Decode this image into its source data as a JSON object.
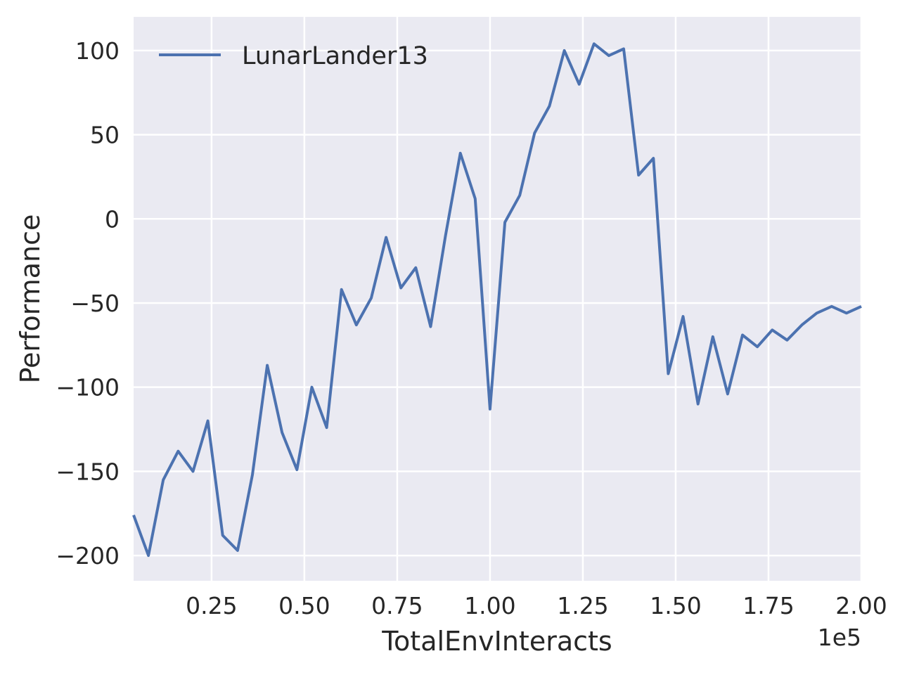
{
  "chart_data": {
    "type": "line",
    "xlabel": "TotalEnvInteracts",
    "ylabel": "Performance",
    "x_multiplier_label": "1e5",
    "xlim": [
      0.04,
      2.0
    ],
    "ylim": [
      -215,
      120
    ],
    "x_ticks": [
      0.25,
      0.5,
      0.75,
      1.0,
      1.25,
      1.5,
      1.75,
      2.0
    ],
    "x_tick_labels": [
      "0.25",
      "0.50",
      "0.75",
      "1.00",
      "1.25",
      "1.50",
      "1.75",
      "2.00"
    ],
    "y_ticks": [
      100,
      50,
      0,
      -50,
      -100,
      -150,
      -200
    ],
    "y_tick_labels": [
      "100",
      "50",
      "0",
      "−50",
      "−100",
      "−150",
      "−200"
    ],
    "grid": true,
    "legend_position": "top-left",
    "colors": {
      "background": "#eaeaf2",
      "grid": "#ffffff",
      "line": "#4c72b0",
      "text": "#262626"
    },
    "series": [
      {
        "name": "LunarLander13",
        "x": [
          0.04,
          0.08,
          0.12,
          0.16,
          0.2,
          0.24,
          0.28,
          0.32,
          0.36,
          0.4,
          0.44,
          0.48,
          0.52,
          0.56,
          0.6,
          0.64,
          0.68,
          0.72,
          0.76,
          0.8,
          0.84,
          0.88,
          0.92,
          0.96,
          1.0,
          1.04,
          1.08,
          1.12,
          1.16,
          1.2,
          1.24,
          1.28,
          1.32,
          1.36,
          1.4,
          1.44,
          1.48,
          1.52,
          1.56,
          1.6,
          1.64,
          1.68,
          1.72,
          1.76,
          1.8,
          1.84,
          1.88,
          1.92,
          1.96,
          2.0
        ],
        "y": [
          -176,
          -200,
          -155,
          -138,
          -150,
          -120,
          -188,
          -197,
          -152,
          -87,
          -127,
          -149,
          -100,
          -124,
          -42,
          -63,
          -47,
          -11,
          -41,
          -29,
          -64,
          -10,
          39,
          12,
          -113,
          -2,
          14,
          51,
          67,
          100,
          80,
          104,
          97,
          101,
          26,
          36,
          -92,
          -58,
          -110,
          -70,
          -104,
          -69,
          -76,
          -66,
          -72,
          -63,
          -56,
          -52,
          -56,
          -52
        ]
      }
    ]
  }
}
